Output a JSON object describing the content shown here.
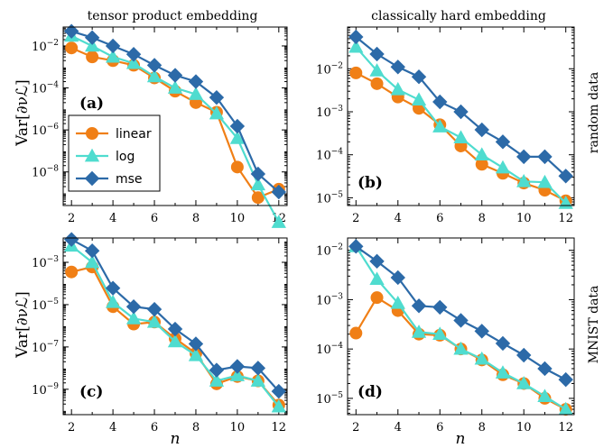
{
  "figure": {
    "col_titles": [
      "tensor product embedding",
      "classically hard embedding"
    ],
    "row_labels": [
      "random data",
      "MNIST data"
    ],
    "ylabel": "Var[∂νℒ]",
    "xlabel": "n"
  },
  "legend": {
    "items": [
      {
        "name": "linear",
        "color": "#f07f16",
        "marker": "circle"
      },
      {
        "name": "log",
        "color": "#4fdccf",
        "marker": "triangle"
      },
      {
        "name": "mse",
        "color": "#2c6aa8",
        "marker": "diamond"
      }
    ]
  },
  "chart_data": [
    {
      "type": "line",
      "panel_label": "(a)",
      "x": [
        2,
        3,
        4,
        5,
        6,
        7,
        8,
        9,
        10,
        11,
        12
      ],
      "y_scale": "log",
      "xlim": [
        1.6,
        12.4
      ],
      "ylim_exp": [
        -9.6,
        -1.1
      ],
      "x_ticks": [
        "2",
        "4",
        "6",
        "8",
        "10",
        "12"
      ],
      "y_ticks": [
        {
          "exp": -2
        },
        {
          "exp": -4
        },
        {
          "exp": -6
        },
        {
          "exp": -8
        }
      ],
      "series": [
        {
          "name": "linear",
          "color": "#f07f16",
          "values": [
            0.008,
            0.003,
            0.002,
            0.0012,
            0.0003,
            7e-05,
            2e-05,
            7e-06,
            1.7e-08,
            6e-10,
            1.5e-09
          ]
        },
        {
          "name": "log",
          "color": "#4fdccf",
          "values": [
            0.03,
            0.01,
            0.003,
            0.0015,
            0.00035,
            0.0001,
            5e-05,
            6e-06,
            4e-07,
            2.5e-09,
            4e-11
          ]
        },
        {
          "name": "mse",
          "color": "#2c6aa8",
          "values": [
            0.05,
            0.025,
            0.01,
            0.004,
            0.0012,
            0.0004,
            0.0002,
            3.5e-05,
            1.5e-06,
            8e-09,
            1.1e-09
          ]
        }
      ]
    },
    {
      "type": "line",
      "panel_label": "(b)",
      "x": [
        2,
        3,
        4,
        5,
        6,
        7,
        8,
        9,
        10,
        11,
        12
      ],
      "y_scale": "log",
      "xlim": [
        1.6,
        12.4
      ],
      "ylim_exp": [
        -5.18,
        -1.03
      ],
      "x_ticks": [
        "2",
        "4",
        "6",
        "8",
        "10",
        "12"
      ],
      "y_ticks": [
        {
          "exp": -2
        },
        {
          "exp": -3
        },
        {
          "exp": -4
        },
        {
          "exp": -5
        }
      ],
      "series": [
        {
          "name": "linear",
          "color": "#f07f16",
          "values": [
            0.008,
            0.0045,
            0.0022,
            0.0012,
            0.0005,
            0.00016,
            6e-05,
            3.7e-05,
            2.2e-05,
            1.5e-05,
            8.5e-06
          ]
        },
        {
          "name": "log",
          "color": "#4fdccf",
          "values": [
            0.032,
            0.009,
            0.0033,
            0.0019,
            0.00045,
            0.00025,
            0.0001,
            5e-05,
            2.4e-05,
            2.3e-05,
            7.5e-06
          ]
        },
        {
          "name": "mse",
          "color": "#2c6aa8",
          "values": [
            0.055,
            0.022,
            0.011,
            0.0065,
            0.0017,
            0.001,
            0.00038,
            0.0002,
            9e-05,
            9e-05,
            3.2e-05
          ]
        }
      ]
    },
    {
      "type": "line",
      "panel_label": "(c)",
      "x": [
        2,
        3,
        4,
        5,
        6,
        7,
        8,
        9,
        10,
        11,
        12
      ],
      "y_scale": "log",
      "xlim": [
        1.6,
        12.4
      ],
      "ylim_exp": [
        -10.2,
        -1.85
      ],
      "x_ticks": [
        "2",
        "4",
        "6",
        "8",
        "10",
        "12"
      ],
      "y_ticks": [
        {
          "exp": -3
        },
        {
          "exp": -5
        },
        {
          "exp": -7
        },
        {
          "exp": -9
        }
      ],
      "series": [
        {
          "name": "linear",
          "color": "#f07f16",
          "values": [
            0.00035,
            0.0006,
            8e-06,
            1.2e-06,
            1.5e-06,
            2.5e-07,
            5e-08,
            1.8e-09,
            4e-09,
            2.5e-09,
            1.8e-10
          ]
        },
        {
          "name": "log",
          "color": "#4fdccf",
          "values": [
            0.006,
            0.001,
            1.3e-05,
            2.2e-06,
            1.5e-06,
            1.8e-07,
            4e-08,
            2.5e-09,
            4.5e-09,
            2.5e-09,
            1.5e-10
          ]
        },
        {
          "name": "mse",
          "color": "#2c6aa8",
          "values": [
            0.012,
            0.0035,
            6e-05,
            8e-06,
            6e-06,
            7e-07,
            1.4e-07,
            8e-09,
            1.2e-08,
            1e-08,
            8e-10
          ]
        }
      ]
    },
    {
      "type": "line",
      "panel_label": "(d)",
      "x": [
        2,
        3,
        4,
        5,
        6,
        7,
        8,
        9,
        10,
        11,
        12
      ],
      "y_scale": "log",
      "xlim": [
        1.6,
        12.4
      ],
      "ylim_exp": [
        -5.33,
        -1.75
      ],
      "x_ticks": [
        "2",
        "4",
        "6",
        "8",
        "10",
        "12"
      ],
      "y_ticks": [
        {
          "exp": -2
        },
        {
          "exp": -3
        },
        {
          "exp": -4
        },
        {
          "exp": -5
        }
      ],
      "series": [
        {
          "name": "linear",
          "color": "#f07f16",
          "values": [
            0.00021,
            0.0011,
            0.0006,
            0.0002,
            0.00019,
            0.0001,
            6e-05,
            3e-05,
            2e-05,
            1e-05,
            6e-06
          ]
        },
        {
          "name": "log",
          "color": "#4fdccf",
          "values": [
            0.012,
            0.0026,
            0.00085,
            0.00022,
            0.0002,
            0.0001,
            6.3e-05,
            3.3e-05,
            2e-05,
            1.1e-05,
            6e-06
          ]
        },
        {
          "name": "mse",
          "color": "#2c6aa8",
          "values": [
            0.012,
            0.006,
            0.0028,
            0.00075,
            0.0007,
            0.00038,
            0.00023,
            0.00013,
            7.5e-05,
            4e-05,
            2.4e-05
          ]
        }
      ]
    }
  ]
}
